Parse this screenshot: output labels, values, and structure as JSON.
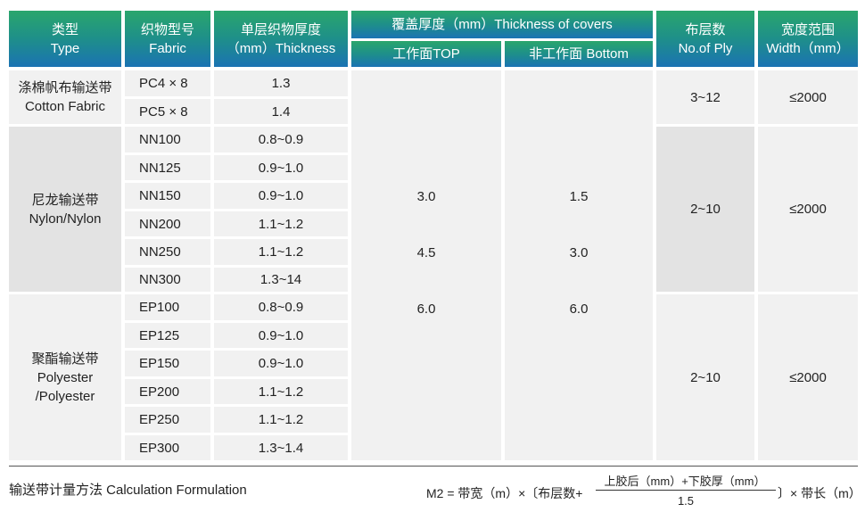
{
  "header": {
    "type_cn": "类型",
    "type_en": "Type",
    "fabric_cn": "织物型号",
    "fabric_en": "Fabric",
    "thick_cn": "单层织物厚度",
    "thick_en": "（mm）Thickness",
    "covers": "覆盖厚度（mm）Thickness of covers",
    "top": "工作面TOP",
    "bottom": "非工作面 Bottom",
    "ply_cn": "布层数",
    "ply_en": "No.of Ply",
    "width_cn": "宽度范围",
    "width_en": "Width（mm）"
  },
  "groups": [
    {
      "cn": "涤棉帆布输送带",
      "en": "Cotton Fabric",
      "ply": "3~12",
      "width": "≤2000"
    },
    {
      "cn": "尼龙输送带",
      "en": "Nylon/Nylon",
      "ply": "2~10",
      "width": "≤2000"
    },
    {
      "cn": "聚酯输送带",
      "en": "Polyester",
      "en2": "/Polyester",
      "ply": "2~10",
      "width": "≤2000"
    }
  ],
  "rows": [
    {
      "fabric": "PC4 × 8",
      "thickness": "1.3"
    },
    {
      "fabric": "PC5 × 8",
      "thickness": "1.4"
    },
    {
      "fabric": "NN100",
      "thickness": "0.8~0.9"
    },
    {
      "fabric": "NN125",
      "thickness": "0.9~1.0"
    },
    {
      "fabric": "NN150",
      "thickness": "0.9~1.0"
    },
    {
      "fabric": "NN200",
      "thickness": "1.1~1.2"
    },
    {
      "fabric": "NN250",
      "thickness": "1.1~1.2"
    },
    {
      "fabric": "NN300",
      "thickness": "1.3~14"
    },
    {
      "fabric": "EP100",
      "thickness": "0.8~0.9"
    },
    {
      "fabric": "EP125",
      "thickness": "0.9~1.0"
    },
    {
      "fabric": "EP150",
      "thickness": "0.9~1.0"
    },
    {
      "fabric": "EP200",
      "thickness": "1.1~1.2"
    },
    {
      "fabric": "EP250",
      "thickness": "1.1~1.2"
    },
    {
      "fabric": "EP300",
      "thickness": "1.3~1.4"
    }
  ],
  "covers": {
    "top": [
      "3.0",
      "4.5",
      "6.0"
    ],
    "bottom": [
      "1.5",
      "3.0",
      "6.0"
    ]
  },
  "footer": {
    "title": "输送带计量方法 Calculation Formulation",
    "formula_left": "M2 = 带宽（m）×〔布层数+",
    "numerator": "上胶后（mm）+下胶厚（mm）",
    "denominator": "1.5",
    "formula_right": "〕× 带长（m）"
  }
}
